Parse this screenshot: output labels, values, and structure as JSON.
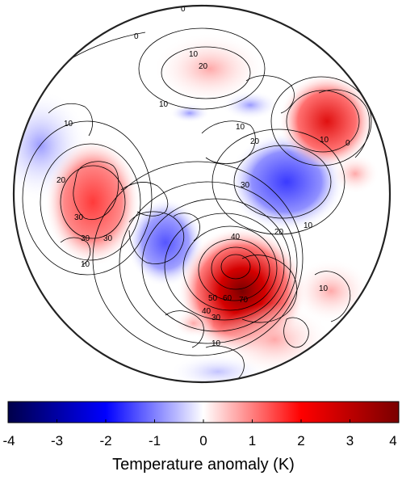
{
  "colorbar": {
    "label": "Temperature anomaly (K)",
    "min": -4,
    "max": 4,
    "ticks": [
      "-4",
      "-3",
      "-2",
      "-1",
      "0",
      "1",
      "2",
      "3",
      "4"
    ],
    "colors": [
      "#00004a",
      "#0000ff",
      "#ffffff",
      "#ff0000",
      "#7a0000"
    ]
  },
  "contours": {
    "labels": [
      "0",
      "10",
      "20",
      "10",
      "10",
      "20",
      "30",
      "30",
      "30",
      "10",
      "10",
      "20",
      "30",
      "40",
      "50",
      "60",
      "70",
      "40",
      "30",
      "10",
      "20",
      "10",
      "0",
      "10",
      "10",
      "0"
    ]
  }
}
